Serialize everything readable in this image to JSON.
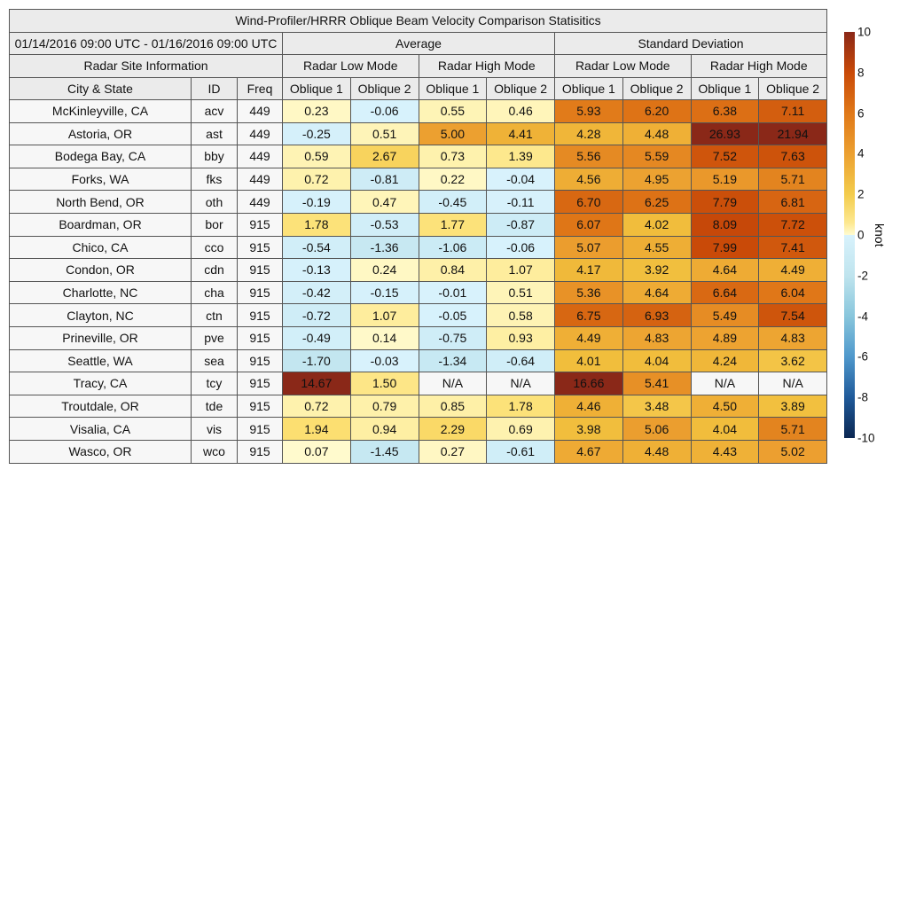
{
  "title": "Wind-Profiler/HRRR Oblique Beam Velocity Comparison Statisitics",
  "date_range": "01/14/2016 09:00 UTC - 01/16/2016 09:00 UTC",
  "groups": {
    "average": "Average",
    "std": "Standard Deviation"
  },
  "site_info": "Radar Site Information",
  "modes": [
    "Radar Low Mode",
    "Radar High Mode",
    "Radar Low Mode",
    "Radar High Mode"
  ],
  "columns": [
    "City & State",
    "ID",
    "Freq",
    "Oblique 1",
    "Oblique 2",
    "Oblique 1",
    "Oblique 2",
    "Oblique 1",
    "Oblique 2",
    "Oblique 1",
    "Oblique 2"
  ],
  "rows": [
    {
      "city": "McKinleyville, CA",
      "id": "acv",
      "freq": "449",
      "values": [
        "0.23",
        "-0.06",
        "0.55",
        "0.46",
        "5.93",
        "6.20",
        "6.38",
        "7.11"
      ]
    },
    {
      "city": "Astoria, OR",
      "id": "ast",
      "freq": "449",
      "values": [
        "-0.25",
        "0.51",
        "5.00",
        "4.41",
        "4.28",
        "4.48",
        "26.93",
        "21.94"
      ]
    },
    {
      "city": "Bodega Bay, CA",
      "id": "bby",
      "freq": "449",
      "values": [
        "0.59",
        "2.67",
        "0.73",
        "1.39",
        "5.56",
        "5.59",
        "7.52",
        "7.63"
      ]
    },
    {
      "city": "Forks, WA",
      "id": "fks",
      "freq": "449",
      "values": [
        "0.72",
        "-0.81",
        "0.22",
        "-0.04",
        "4.56",
        "4.95",
        "5.19",
        "5.71"
      ]
    },
    {
      "city": "North Bend, OR",
      "id": "oth",
      "freq": "449",
      "values": [
        "-0.19",
        "0.47",
        "-0.45",
        "-0.11",
        "6.70",
        "6.25",
        "7.79",
        "6.81"
      ]
    },
    {
      "city": "Boardman, OR",
      "id": "bor",
      "freq": "915",
      "values": [
        "1.78",
        "-0.53",
        "1.77",
        "-0.87",
        "6.07",
        "4.02",
        "8.09",
        "7.72"
      ]
    },
    {
      "city": "Chico, CA",
      "id": "cco",
      "freq": "915",
      "values": [
        "-0.54",
        "-1.36",
        "-1.06",
        "-0.06",
        "5.07",
        "4.55",
        "7.99",
        "7.41"
      ]
    },
    {
      "city": "Condon, OR",
      "id": "cdn",
      "freq": "915",
      "values": [
        "-0.13",
        "0.24",
        "0.84",
        "1.07",
        "4.17",
        "3.92",
        "4.64",
        "4.49"
      ]
    },
    {
      "city": "Charlotte, NC",
      "id": "cha",
      "freq": "915",
      "values": [
        "-0.42",
        "-0.15",
        "-0.01",
        "0.51",
        "5.36",
        "4.64",
        "6.64",
        "6.04"
      ]
    },
    {
      "city": "Clayton, NC",
      "id": "ctn",
      "freq": "915",
      "values": [
        "-0.72",
        "1.07",
        "-0.05",
        "0.58",
        "6.75",
        "6.93",
        "5.49",
        "7.54"
      ]
    },
    {
      "city": "Prineville, OR",
      "id": "pve",
      "freq": "915",
      "values": [
        "-0.49",
        "0.14",
        "-0.75",
        "0.93",
        "4.49",
        "4.83",
        "4.89",
        "4.83"
      ]
    },
    {
      "city": "Seattle, WA",
      "id": "sea",
      "freq": "915",
      "values": [
        "-1.70",
        "-0.03",
        "-1.34",
        "-0.64",
        "4.01",
        "4.04",
        "4.24",
        "3.62"
      ]
    },
    {
      "city": "Tracy, CA",
      "id": "tcy",
      "freq": "915",
      "values": [
        "14.67",
        "1.50",
        "N/A",
        "N/A",
        "16.66",
        "5.41",
        "N/A",
        "N/A"
      ]
    },
    {
      "city": "Troutdale, OR",
      "id": "tde",
      "freq": "915",
      "values": [
        "0.72",
        "0.79",
        "0.85",
        "1.78",
        "4.46",
        "3.48",
        "4.50",
        "3.89"
      ]
    },
    {
      "city": "Visalia, CA",
      "id": "vis",
      "freq": "915",
      "values": [
        "1.94",
        "0.94",
        "2.29",
        "0.69",
        "3.98",
        "5.06",
        "4.04",
        "5.71"
      ]
    },
    {
      "city": "Wasco, OR",
      "id": "wco",
      "freq": "915",
      "values": [
        "0.07",
        "-1.45",
        "0.27",
        "-0.61",
        "4.67",
        "4.48",
        "4.43",
        "5.02"
      ]
    }
  ],
  "colorbar": {
    "unit": "knot",
    "ticks": [
      10,
      8,
      6,
      4,
      2,
      0,
      -2,
      -4,
      -6,
      -8,
      -10
    ],
    "range": [
      -10,
      10
    ],
    "na_color": "#f7f7f7"
  }
}
